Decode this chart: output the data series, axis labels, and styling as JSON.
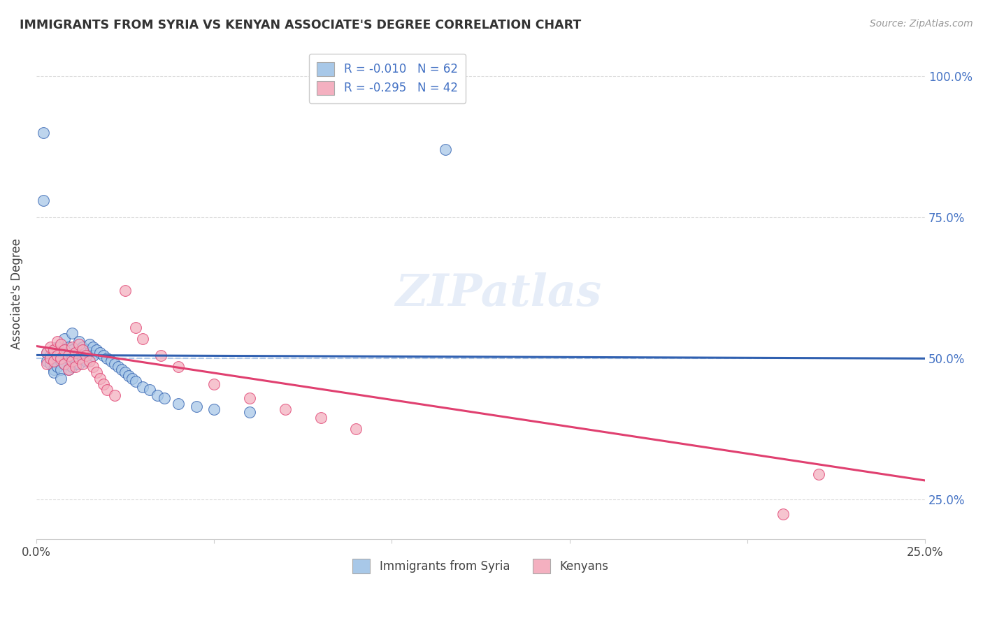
{
  "title": "IMMIGRANTS FROM SYRIA VS KENYAN ASSOCIATE'S DEGREE CORRELATION CHART",
  "source": "Source: ZipAtlas.com",
  "ylabel": "Associate's Degree",
  "legend_label1": "Immigrants from Syria",
  "legend_label2": "Kenyans",
  "R1": "-0.010",
  "N1": "62",
  "R2": "-0.295",
  "N2": "42",
  "color_blue": "#a8c8e8",
  "color_pink": "#f4b0c0",
  "color_blue_line": "#3060b0",
  "color_pink_line": "#e04070",
  "color_dashed": "#b0c8e8",
  "xmin": 0.0,
  "xmax": 0.25,
  "ymin": 0.18,
  "ymax": 1.05,
  "yticks": [
    0.25,
    0.5,
    0.75,
    1.0
  ],
  "ytick_labels": [
    "25.0%",
    "50.0%",
    "75.0%",
    "100.0%"
  ],
  "xticks": [
    0.0,
    0.05,
    0.1,
    0.15,
    0.2,
    0.25
  ],
  "xtick_labels": [
    "0.0%",
    "",
    "",
    "",
    "",
    "25.0%"
  ],
  "watermark": "ZIPatlas",
  "blue_scatter_x": [
    0.003,
    0.003,
    0.004,
    0.004,
    0.004,
    0.005,
    0.005,
    0.005,
    0.005,
    0.006,
    0.006,
    0.006,
    0.007,
    0.007,
    0.007,
    0.007,
    0.008,
    0.008,
    0.008,
    0.009,
    0.009,
    0.009,
    0.01,
    0.01,
    0.01,
    0.01,
    0.011,
    0.011,
    0.012,
    0.012,
    0.012,
    0.013,
    0.013,
    0.014,
    0.014,
    0.015,
    0.015,
    0.016,
    0.016,
    0.017,
    0.018,
    0.019,
    0.02,
    0.021,
    0.022,
    0.023,
    0.024,
    0.025,
    0.026,
    0.027,
    0.028,
    0.03,
    0.032,
    0.034,
    0.036,
    0.04,
    0.045,
    0.05,
    0.06,
    0.115,
    0.002,
    0.002
  ],
  "blue_scatter_y": [
    0.495,
    0.51,
    0.5,
    0.49,
    0.505,
    0.515,
    0.495,
    0.48,
    0.475,
    0.52,
    0.5,
    0.485,
    0.51,
    0.495,
    0.48,
    0.465,
    0.535,
    0.51,
    0.49,
    0.52,
    0.5,
    0.48,
    0.545,
    0.515,
    0.5,
    0.485,
    0.51,
    0.49,
    0.53,
    0.51,
    0.49,
    0.52,
    0.5,
    0.515,
    0.495,
    0.525,
    0.51,
    0.52,
    0.505,
    0.515,
    0.51,
    0.505,
    0.5,
    0.495,
    0.49,
    0.485,
    0.48,
    0.475,
    0.47,
    0.465,
    0.46,
    0.45,
    0.445,
    0.435,
    0.43,
    0.42,
    0.415,
    0.41,
    0.405,
    0.87,
    0.78,
    0.9
  ],
  "pink_scatter_x": [
    0.003,
    0.003,
    0.004,
    0.004,
    0.005,
    0.005,
    0.006,
    0.006,
    0.007,
    0.007,
    0.008,
    0.008,
    0.009,
    0.009,
    0.01,
    0.01,
    0.011,
    0.011,
    0.012,
    0.012,
    0.013,
    0.013,
    0.014,
    0.015,
    0.016,
    0.017,
    0.018,
    0.019,
    0.02,
    0.022,
    0.025,
    0.028,
    0.03,
    0.035,
    0.04,
    0.05,
    0.06,
    0.07,
    0.08,
    0.09,
    0.22,
    0.21
  ],
  "pink_scatter_y": [
    0.51,
    0.49,
    0.52,
    0.5,
    0.515,
    0.495,
    0.53,
    0.505,
    0.525,
    0.5,
    0.515,
    0.49,
    0.505,
    0.48,
    0.52,
    0.495,
    0.51,
    0.485,
    0.525,
    0.5,
    0.515,
    0.49,
    0.505,
    0.495,
    0.485,
    0.475,
    0.465,
    0.455,
    0.445,
    0.435,
    0.62,
    0.555,
    0.535,
    0.505,
    0.485,
    0.455,
    0.43,
    0.41,
    0.395,
    0.375,
    0.295,
    0.225
  ],
  "blue_line_x": [
    0.0,
    0.25
  ],
  "blue_line_y": [
    0.506,
    0.5
  ],
  "pink_line_x": [
    0.0,
    0.25
  ],
  "pink_line_y": [
    0.522,
    0.284
  ],
  "dashed_line_x": [
    0.0,
    0.25
  ],
  "dashed_line_y": [
    0.5,
    0.5
  ]
}
